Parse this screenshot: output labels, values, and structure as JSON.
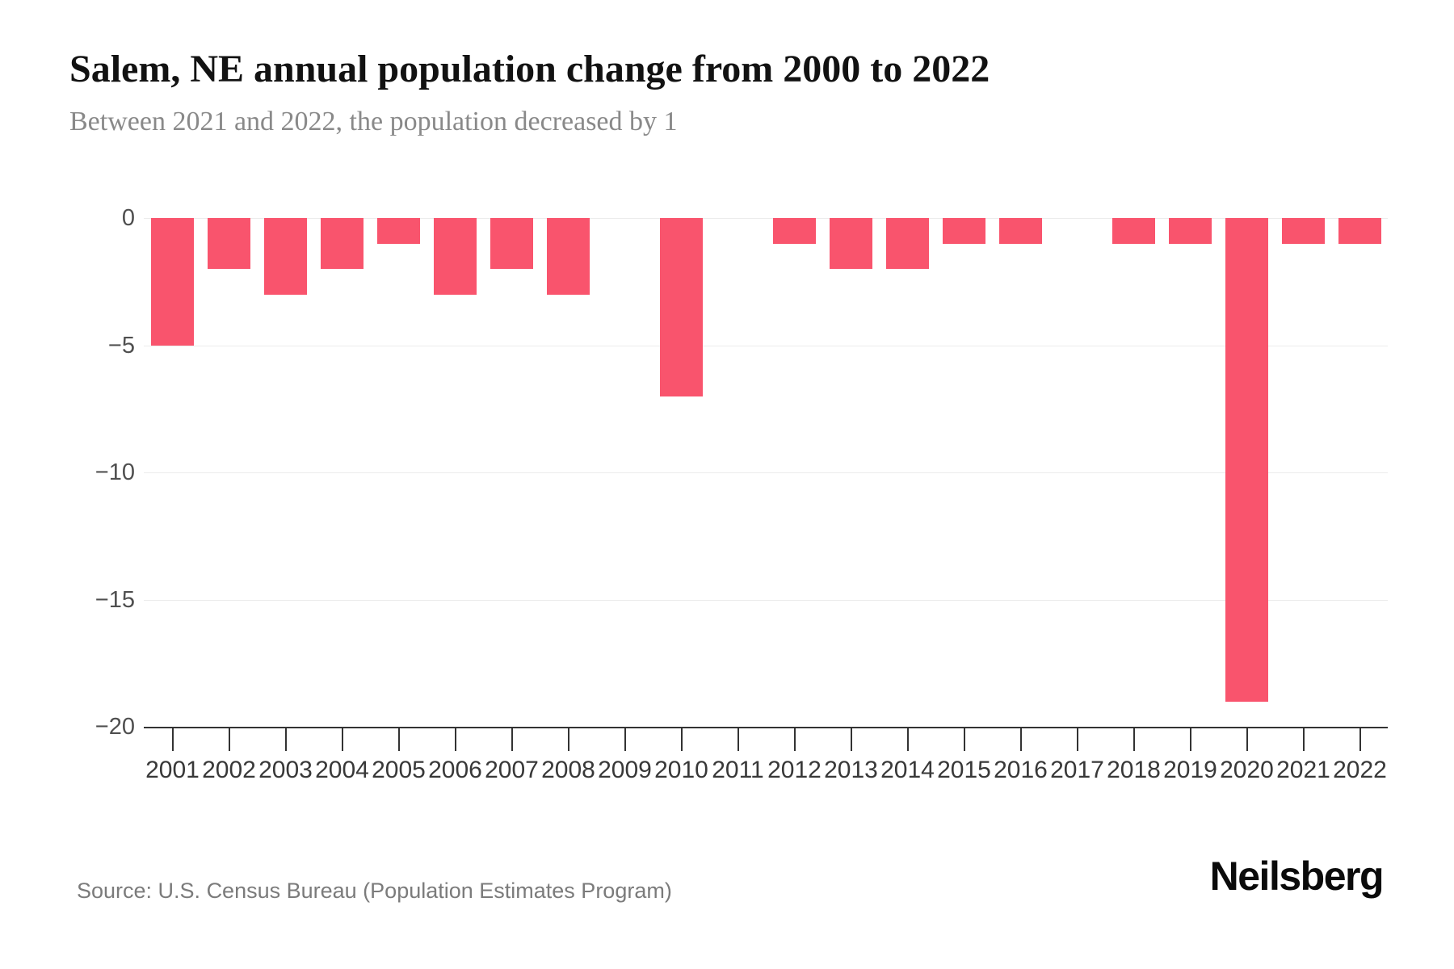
{
  "header": {
    "title": "Salem, NE annual population change from 2000 to 2022",
    "subtitle": "Between 2021 and 2022, the population decreased by 1"
  },
  "footer": {
    "source": "Source: U.S. Census Bureau (Population Estimates Program)",
    "brand": "Neilsberg"
  },
  "colors": {
    "bar": "#f9546d",
    "gridline": "#ececec",
    "axis": "#333333",
    "title": "#121212",
    "subtitle": "#898989",
    "y_label": "#4f4f4f",
    "x_label": "#383838",
    "source": "#7b7b7b",
    "brand": "#0b0b0b",
    "background": "#ffffff"
  },
  "chart_data": {
    "type": "bar",
    "title": "Salem, NE annual population change from 2000 to 2022",
    "subtitle": "Between 2021 and 2022, the population decreased by 1",
    "categories": [
      "2001",
      "2002",
      "2003",
      "2004",
      "2005",
      "2006",
      "2007",
      "2008",
      "2009",
      "2010",
      "2011",
      "2012",
      "2013",
      "2014",
      "2015",
      "2016",
      "2017",
      "2018",
      "2019",
      "2020",
      "2021",
      "2022"
    ],
    "values": [
      -5,
      -2,
      -3,
      -2,
      -1,
      -3,
      -2,
      -3,
      0,
      -7,
      0,
      -1,
      -2,
      -2,
      -1,
      -1,
      0,
      -1,
      -1,
      -19,
      -1,
      -1
    ],
    "xlabel": "",
    "ylabel": "",
    "ylim": [
      -20,
      0
    ],
    "yticks": [
      0,
      -5,
      -10,
      -15,
      -20
    ],
    "ytick_labels": [
      "0",
      "−5",
      "−10",
      "−15",
      "−20"
    ],
    "grid": true,
    "legend": false,
    "bar_color": "#f9546d"
  }
}
